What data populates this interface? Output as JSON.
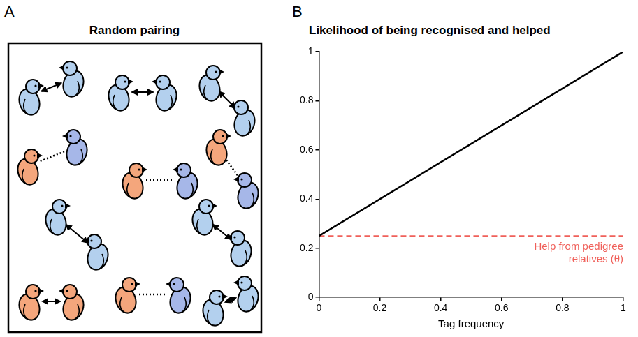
{
  "panel_a": {
    "panel_label": "A",
    "title": "Random pairing"
  },
  "chart_data": {
    "type": "line",
    "panel_label": "B",
    "title": "Likelihood of being recognised and helped",
    "x_label": "Tag frequency",
    "x": [
      0,
      1
    ],
    "series": [
      {
        "color": "#000000",
        "values": [
          0.25,
          1
        ]
      },
      {
        "name": "Help from pedigree relatives (θ)",
        "color": "#f0605a",
        "line_style": "dashed",
        "values": [
          0.25,
          0.25
        ]
      }
    ],
    "xlim": [
      0,
      1
    ],
    "xticks": [
      0,
      0.2,
      0.4,
      0.6,
      0.8,
      1
    ],
    "ylim": [
      0,
      1
    ],
    "yticks": [
      0,
      0.2,
      0.4,
      0.6,
      0.8,
      1
    ],
    "grid": false
  }
}
